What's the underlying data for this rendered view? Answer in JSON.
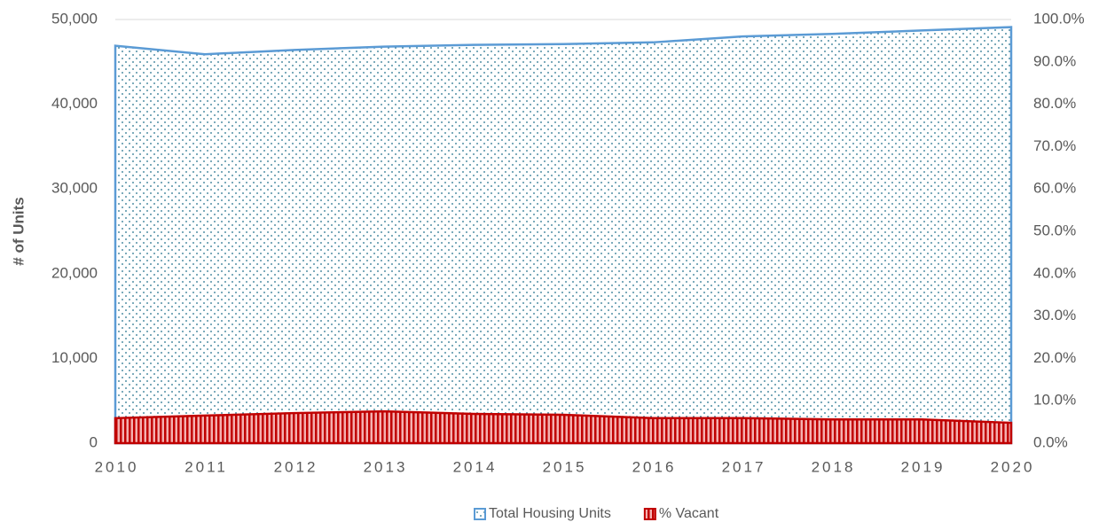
{
  "chart_data": {
    "type": "area",
    "y_label": "# of Units",
    "x": [
      2010,
      2011,
      2012,
      2013,
      2014,
      2015,
      2016,
      2017,
      2018,
      2019,
      2020
    ],
    "xlim": [
      2010,
      2020
    ],
    "xticks": [
      2010,
      2011,
      2012,
      2013,
      2014,
      2015,
      2016,
      2017,
      2018,
      2019,
      2020
    ],
    "ylim": [
      0,
      50000
    ],
    "yticks": [
      0,
      {
        "value": 10000,
        "label": "10,000"
      },
      {
        "value": 20000,
        "label": "20,000"
      },
      {
        "value": 30000,
        "label": "30,000"
      },
      {
        "value": 40000,
        "label": "40,000"
      },
      {
        "value": 50000,
        "label": "50,000"
      }
    ],
    "y2lim": [
      0,
      100
    ],
    "y2ticks": [
      {
        "value": 0,
        "label": "0.0%"
      },
      {
        "value": 10,
        "label": "10.0%"
      },
      {
        "value": 20,
        "label": "20.0%"
      },
      {
        "value": 30,
        "label": "30.0%"
      },
      {
        "value": 40,
        "label": "40.0%"
      },
      {
        "value": 50,
        "label": "50.0%"
      },
      {
        "value": 60,
        "label": "60.0%"
      },
      {
        "value": 70,
        "label": "70.0%"
      },
      {
        "value": 80,
        "label": "80.0%"
      },
      {
        "value": 90,
        "label": "90.0%"
      },
      {
        "value": 100,
        "label": "100.0%"
      }
    ],
    "grid": true,
    "legend": "bottom",
    "series": [
      {
        "name": "Total Housing Units",
        "color": "#5b9bd5",
        "values": [
          46900,
          45900,
          46400,
          46800,
          47000,
          47100,
          47300,
          48000,
          48300,
          48700,
          49100
        ]
      },
      {
        "name": "% Vacant",
        "color": "#c00000",
        "axis": "y2",
        "values": [
          5.9,
          6.5,
          7.1,
          7.5,
          6.9,
          6.7,
          5.9,
          5.9,
          5.6,
          5.6,
          4.8
        ]
      }
    ]
  }
}
